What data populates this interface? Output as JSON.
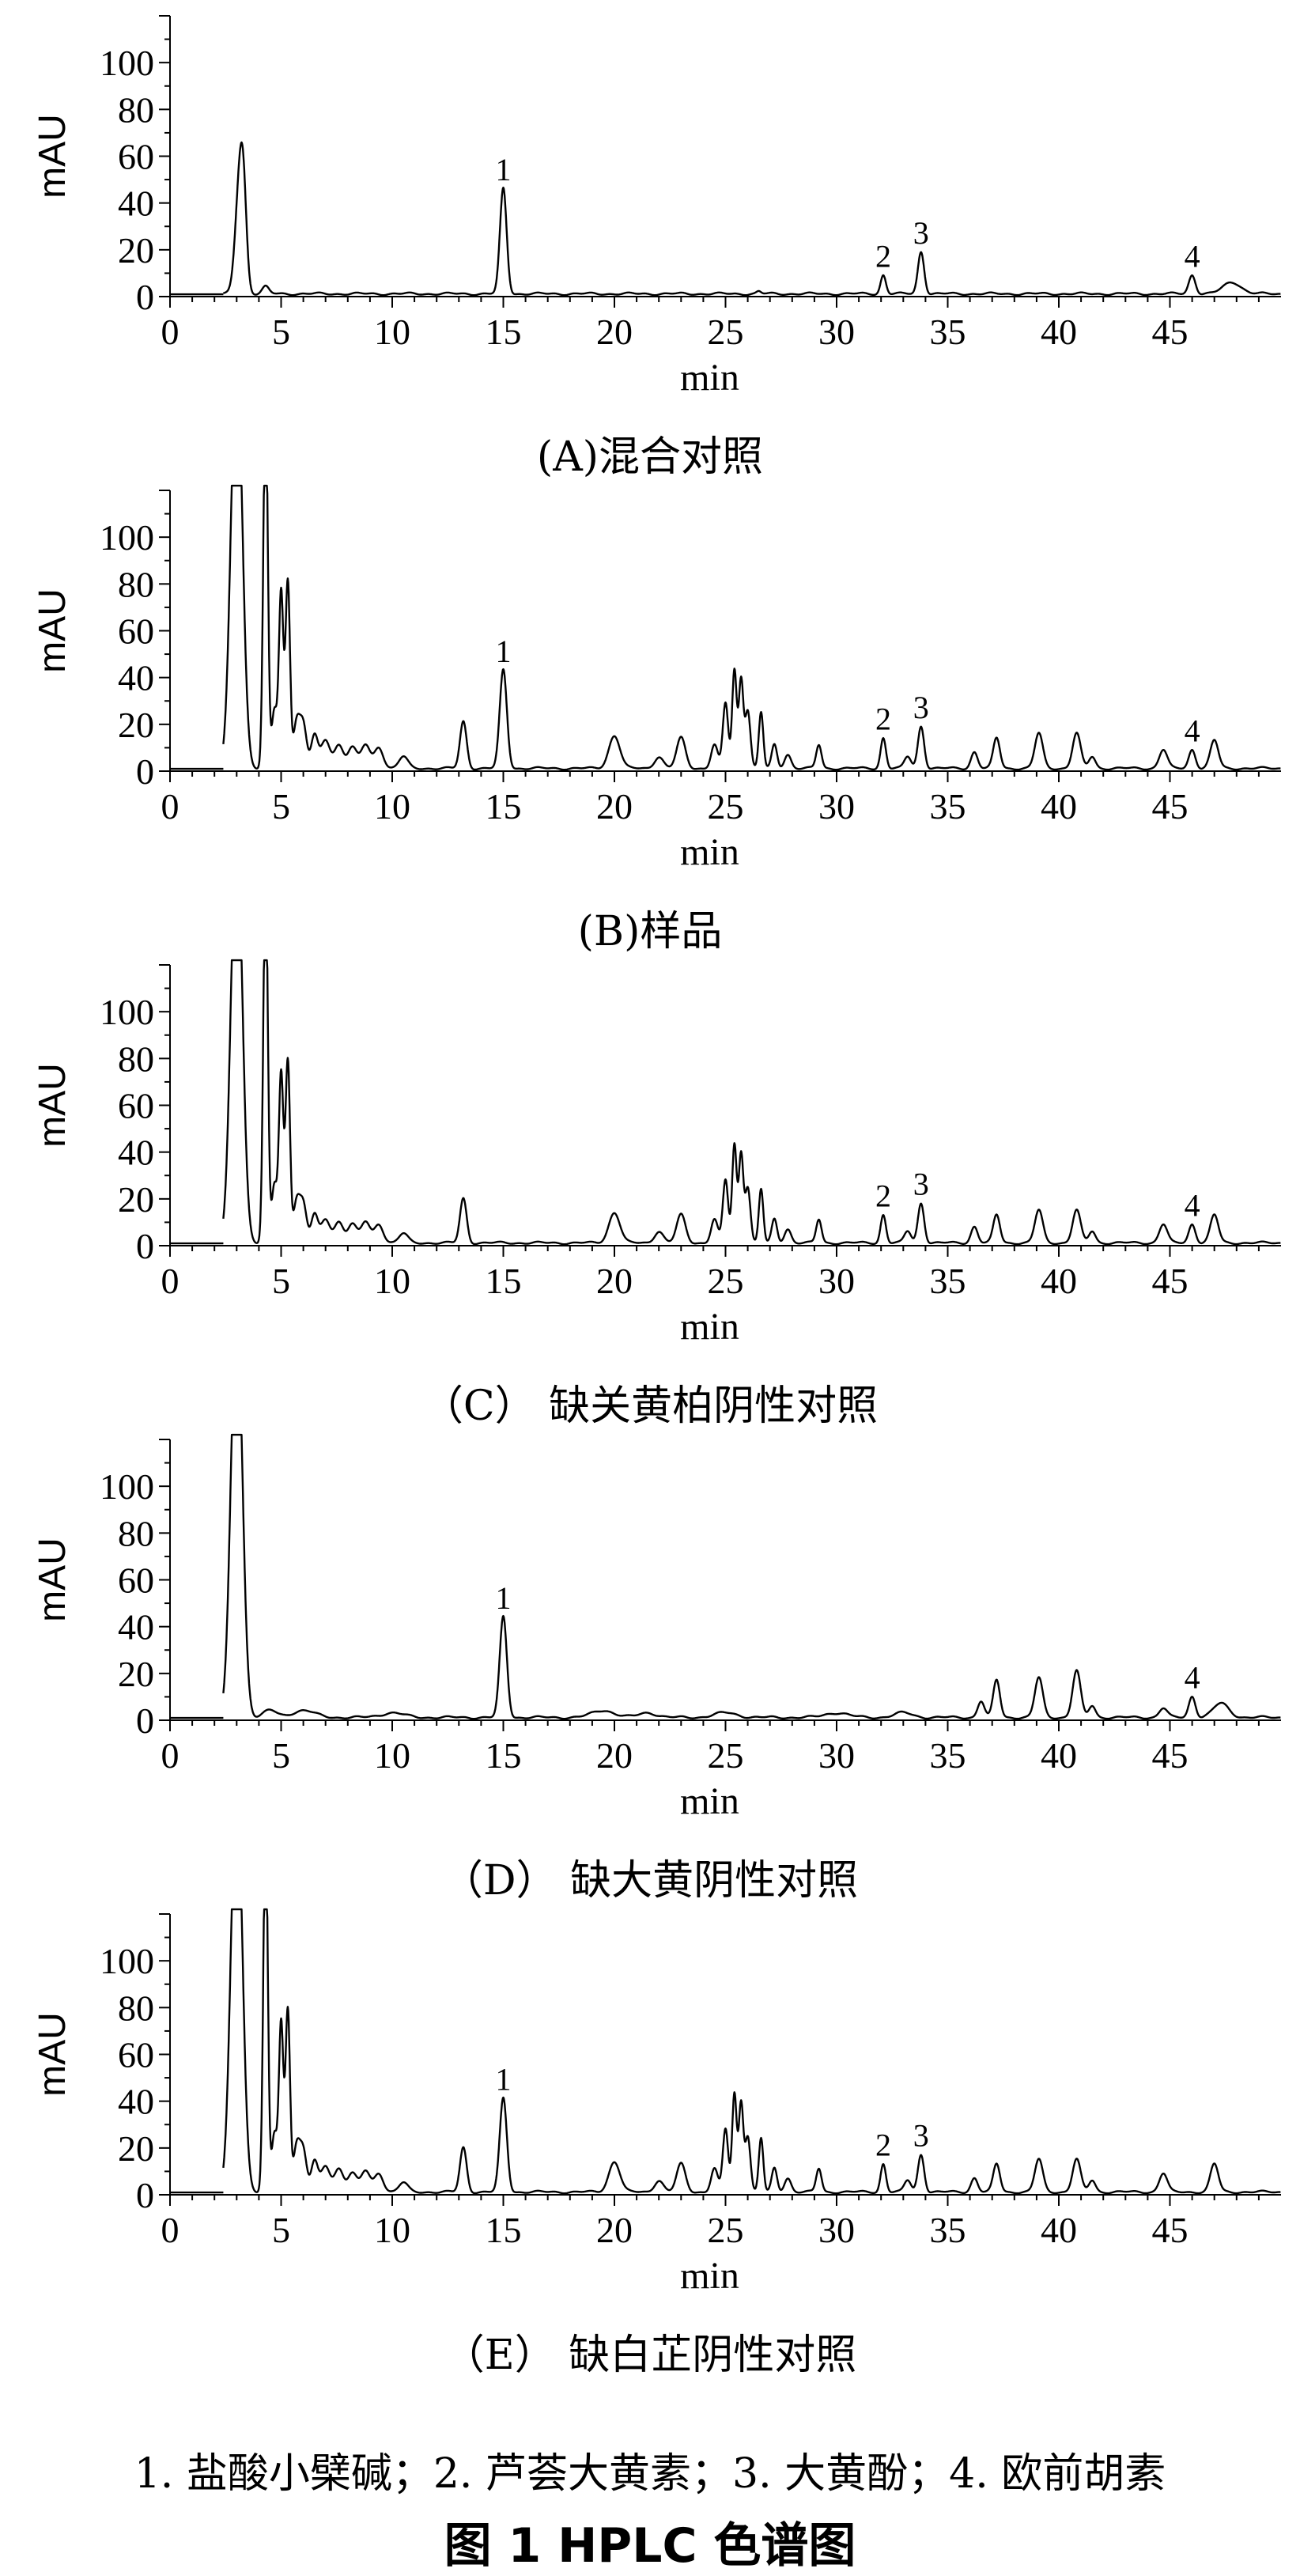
{
  "figure_title": "图 1    HPLC 色谱图",
  "footnote": "1. 盐酸小檗碱；2. 芦荟大黄素；3. 大黄酚；4. 欧前胡素",
  "chart_data": [
    {
      "type": "line",
      "caption": "(A)混合对照",
      "xlabel": "min",
      "ylabel": "mAU",
      "xlim": [
        0,
        50
      ],
      "ylim": [
        0,
        120
      ],
      "xticks": [
        0,
        5,
        10,
        15,
        20,
        25,
        30,
        35,
        40,
        45
      ],
      "yticks": [
        0,
        20,
        40,
        60,
        80,
        100
      ],
      "peaks": [
        [
          3.1,
          40,
          0.18
        ],
        [
          3.3,
          38,
          0.15
        ],
        [
          4.3,
          3,
          0.15
        ],
        [
          15.0,
          45,
          0.15
        ],
        [
          26.5,
          1,
          0.1
        ],
        [
          32.1,
          8,
          0.12
        ],
        [
          33.8,
          18,
          0.14
        ],
        [
          46.0,
          8,
          0.15
        ],
        [
          47.8,
          5,
          0.4
        ]
      ],
      "peak_labels": [
        {
          "x": 15.0,
          "y": 45,
          "text": "1"
        },
        {
          "x": 32.1,
          "y": 8,
          "text": "2"
        },
        {
          "x": 33.8,
          "y": 18,
          "text": "3"
        },
        {
          "x": 46.0,
          "y": 8,
          "text": "4"
        }
      ]
    },
    {
      "type": "line",
      "caption": "(B)样品",
      "xlabel": "min",
      "ylabel": "mAU",
      "xlim": [
        0,
        50
      ],
      "ylim": [
        0,
        120
      ],
      "xticks": [
        0,
        5,
        10,
        15,
        20,
        25,
        30,
        35,
        40,
        45
      ],
      "yticks": [
        0,
        20,
        40,
        60,
        80,
        100
      ],
      "peaks": [
        [
          3.0,
          180,
          0.25
        ],
        [
          4.3,
          160,
          0.1
        ],
        [
          4.7,
          25,
          0.12
        ],
        [
          5.0,
          75,
          0.1
        ],
        [
          5.3,
          80,
          0.1
        ],
        [
          5.7,
          20,
          0.15
        ],
        [
          6.0,
          18,
          0.15
        ],
        [
          6.5,
          14,
          0.15
        ],
        [
          7.0,
          12,
          0.2
        ],
        [
          7.6,
          10,
          0.2
        ],
        [
          8.2,
          9,
          0.2
        ],
        [
          8.8,
          10,
          0.2
        ],
        [
          9.4,
          9,
          0.2
        ],
        [
          10.5,
          5,
          0.2
        ],
        [
          13.2,
          20,
          0.15
        ],
        [
          15.0,
          42,
          0.16
        ],
        [
          20.0,
          14,
          0.25
        ],
        [
          22.0,
          5,
          0.2
        ],
        [
          23.0,
          13,
          0.2
        ],
        [
          24.5,
          10,
          0.15
        ],
        [
          25.0,
          28,
          0.12
        ],
        [
          25.4,
          42,
          0.1
        ],
        [
          25.7,
          38,
          0.1
        ],
        [
          26.0,
          25,
          0.12
        ],
        [
          26.6,
          24,
          0.1
        ],
        [
          27.2,
          10,
          0.12
        ],
        [
          27.8,
          6,
          0.15
        ],
        [
          29.2,
          10,
          0.12
        ],
        [
          32.1,
          13,
          0.12
        ],
        [
          33.2,
          5,
          0.15
        ],
        [
          33.8,
          18,
          0.14
        ],
        [
          36.2,
          7,
          0.15
        ],
        [
          37.2,
          13,
          0.15
        ],
        [
          39.1,
          15,
          0.18
        ],
        [
          40.8,
          15,
          0.18
        ],
        [
          41.5,
          5,
          0.15
        ],
        [
          44.7,
          8,
          0.18
        ],
        [
          46.0,
          8,
          0.15
        ],
        [
          47.0,
          12,
          0.18
        ]
      ],
      "peak_labels": [
        {
          "x": 15.0,
          "y": 42,
          "text": "1"
        },
        {
          "x": 32.1,
          "y": 13,
          "text": "2"
        },
        {
          "x": 33.8,
          "y": 18,
          "text": "3"
        },
        {
          "x": 46.0,
          "y": 8,
          "text": "4"
        }
      ]
    },
    {
      "type": "line",
      "caption": "（C） 缺关黄柏阴性对照",
      "xlabel": "min",
      "ylabel": "mAU",
      "xlim": [
        0,
        50
      ],
      "ylim": [
        0,
        120
      ],
      "xticks": [
        0,
        5,
        10,
        15,
        20,
        25,
        30,
        35,
        40,
        45
      ],
      "yticks": [
        0,
        20,
        40,
        60,
        80,
        100
      ],
      "peaks": [
        [
          3.0,
          180,
          0.25
        ],
        [
          4.3,
          160,
          0.1
        ],
        [
          4.7,
          25,
          0.12
        ],
        [
          5.0,
          72,
          0.1
        ],
        [
          5.3,
          78,
          0.1
        ],
        [
          5.7,
          18,
          0.15
        ],
        [
          6.0,
          16,
          0.15
        ],
        [
          6.5,
          12,
          0.15
        ],
        [
          7.0,
          10,
          0.2
        ],
        [
          7.6,
          9,
          0.2
        ],
        [
          8.2,
          8,
          0.2
        ],
        [
          8.8,
          9,
          0.2
        ],
        [
          9.4,
          8,
          0.2
        ],
        [
          10.5,
          4,
          0.2
        ],
        [
          13.2,
          19,
          0.15
        ],
        [
          20.0,
          13,
          0.25
        ],
        [
          22.0,
          5,
          0.2
        ],
        [
          23.0,
          12,
          0.2
        ],
        [
          24.5,
          10,
          0.15
        ],
        [
          25.0,
          27,
          0.12
        ],
        [
          25.4,
          42,
          0.1
        ],
        [
          25.7,
          38,
          0.1
        ],
        [
          26.0,
          24,
          0.12
        ],
        [
          26.6,
          23,
          0.1
        ],
        [
          27.2,
          10,
          0.12
        ],
        [
          27.8,
          6,
          0.15
        ],
        [
          29.2,
          10,
          0.12
        ],
        [
          32.1,
          12,
          0.12
        ],
        [
          33.2,
          5,
          0.15
        ],
        [
          33.8,
          17,
          0.14
        ],
        [
          36.2,
          7,
          0.15
        ],
        [
          37.2,
          12,
          0.15
        ],
        [
          39.1,
          14,
          0.18
        ],
        [
          40.8,
          14,
          0.18
        ],
        [
          41.5,
          5,
          0.15
        ],
        [
          44.7,
          8,
          0.18
        ],
        [
          46.0,
          8,
          0.15
        ],
        [
          47.0,
          12,
          0.18
        ]
      ],
      "peak_labels": [
        {
          "x": 32.1,
          "y": 12,
          "text": "2"
        },
        {
          "x": 33.8,
          "y": 17,
          "text": "3"
        },
        {
          "x": 46.0,
          "y": 8,
          "text": "4"
        }
      ]
    },
    {
      "type": "line",
      "caption": "（D） 缺大黄阴性对照",
      "xlabel": "min",
      "ylabel": "mAU",
      "xlim": [
        0,
        50
      ],
      "ylim": [
        0,
        120
      ],
      "xticks": [
        0,
        5,
        10,
        15,
        20,
        25,
        30,
        35,
        40,
        45
      ],
      "yticks": [
        0,
        20,
        40,
        60,
        80,
        100
      ],
      "peaks": [
        [
          3.0,
          180,
          0.25
        ],
        [
          4.5,
          3,
          0.3
        ],
        [
          6.0,
          3,
          0.5
        ],
        [
          10.0,
          2,
          0.5
        ],
        [
          15.0,
          43,
          0.16
        ],
        [
          19.5,
          3,
          0.5
        ],
        [
          21.5,
          2,
          0.4
        ],
        [
          25.0,
          2,
          0.5
        ],
        [
          30.0,
          2,
          0.5
        ],
        [
          33.0,
          2,
          0.4
        ],
        [
          36.5,
          7,
          0.15
        ],
        [
          37.2,
          16,
          0.15
        ],
        [
          39.1,
          17,
          0.18
        ],
        [
          40.8,
          20,
          0.18
        ],
        [
          41.5,
          5,
          0.15
        ],
        [
          44.7,
          4,
          0.18
        ],
        [
          46.0,
          9,
          0.15
        ],
        [
          47.3,
          6,
          0.35
        ]
      ],
      "peak_labels": [
        {
          "x": 15.0,
          "y": 43,
          "text": "1"
        },
        {
          "x": 46.0,
          "y": 9,
          "text": "4"
        }
      ]
    },
    {
      "type": "line",
      "caption": "（E） 缺白芷阴性对照",
      "xlabel": "min",
      "ylabel": "mAU",
      "xlim": [
        0,
        50
      ],
      "ylim": [
        0,
        120
      ],
      "xticks": [
        0,
        5,
        10,
        15,
        20,
        25,
        30,
        35,
        40,
        45
      ],
      "yticks": [
        0,
        20,
        40,
        60,
        80,
        100
      ],
      "peaks": [
        [
          3.0,
          180,
          0.25
        ],
        [
          4.3,
          160,
          0.1
        ],
        [
          4.7,
          25,
          0.12
        ],
        [
          5.0,
          72,
          0.1
        ],
        [
          5.3,
          78,
          0.1
        ],
        [
          5.7,
          20,
          0.15
        ],
        [
          6.0,
          17,
          0.15
        ],
        [
          6.5,
          13,
          0.15
        ],
        [
          7.0,
          11,
          0.2
        ],
        [
          7.6,
          10,
          0.2
        ],
        [
          8.2,
          8,
          0.2
        ],
        [
          8.8,
          9,
          0.2
        ],
        [
          9.4,
          8,
          0.2
        ],
        [
          10.5,
          4,
          0.2
        ],
        [
          13.2,
          19,
          0.15
        ],
        [
          15.0,
          40,
          0.16
        ],
        [
          20.0,
          13,
          0.25
        ],
        [
          22.0,
          5,
          0.2
        ],
        [
          23.0,
          12,
          0.2
        ],
        [
          24.5,
          10,
          0.15
        ],
        [
          25.0,
          27,
          0.12
        ],
        [
          25.4,
          42,
          0.1
        ],
        [
          25.7,
          38,
          0.1
        ],
        [
          26.0,
          24,
          0.12
        ],
        [
          26.6,
          23,
          0.1
        ],
        [
          27.2,
          10,
          0.12
        ],
        [
          27.8,
          6,
          0.15
        ],
        [
          29.2,
          10,
          0.12
        ],
        [
          32.1,
          12,
          0.12
        ],
        [
          33.2,
          5,
          0.15
        ],
        [
          33.8,
          16,
          0.14
        ],
        [
          36.2,
          6,
          0.15
        ],
        [
          37.2,
          12,
          0.15
        ],
        [
          39.1,
          14,
          0.18
        ],
        [
          40.8,
          14,
          0.18
        ],
        [
          41.5,
          5,
          0.15
        ],
        [
          44.7,
          8,
          0.18
        ],
        [
          47.0,
          12,
          0.18
        ]
      ],
      "peak_labels": [
        {
          "x": 15.0,
          "y": 40,
          "text": "1"
        },
        {
          "x": 32.1,
          "y": 12,
          "text": "2"
        },
        {
          "x": 33.8,
          "y": 16,
          "text": "3"
        }
      ]
    }
  ]
}
